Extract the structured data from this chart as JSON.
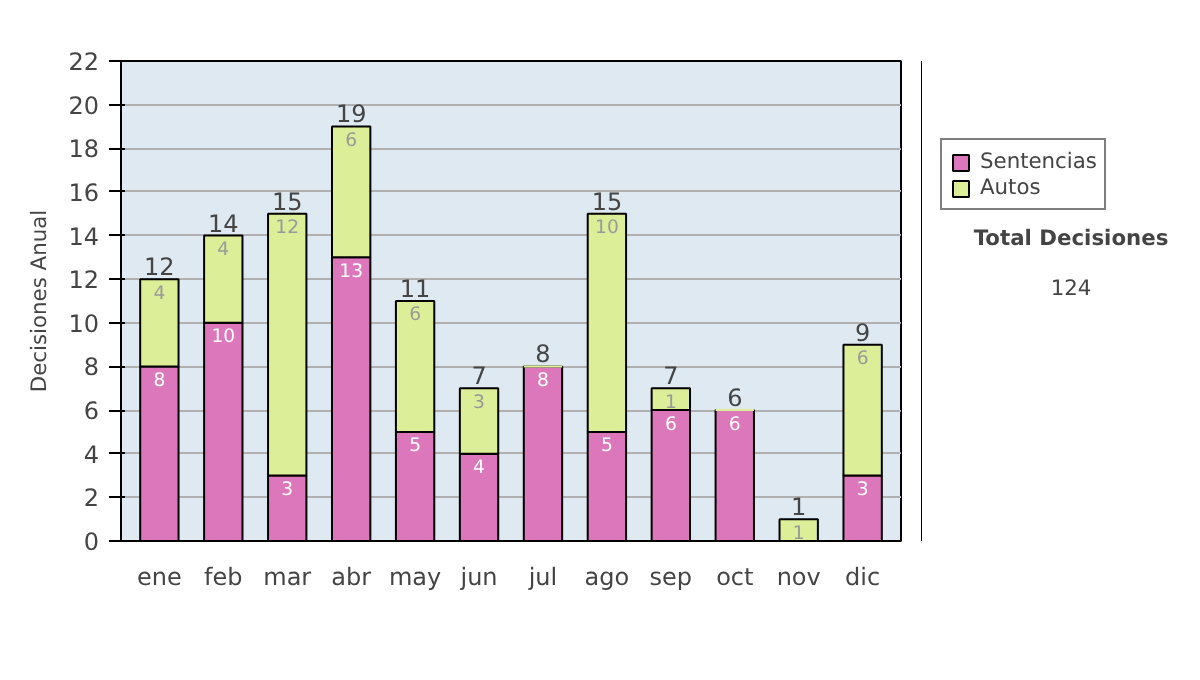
{
  "chart_data": {
    "type": "bar",
    "stacked": true,
    "categories": [
      "ene",
      "feb",
      "mar",
      "abr",
      "may",
      "jun",
      "jul",
      "ago",
      "sep",
      "oct",
      "nov",
      "dic"
    ],
    "series": [
      {
        "name": "Sentencias",
        "color": "#dd77bb",
        "values": [
          8,
          10,
          3,
          13,
          5,
          4,
          8,
          5,
          6,
          6,
          0,
          3
        ],
        "value_labels": [
          "8",
          "10",
          "3",
          "13",
          "5",
          "4",
          "8",
          "5",
          "6",
          "6",
          null,
          "3"
        ]
      },
      {
        "name": "Autos",
        "color": "#ddee99",
        "values": [
          4,
          4,
          12,
          6,
          6,
          3,
          0,
          10,
          1,
          0,
          1,
          6
        ],
        "value_labels": [
          "4",
          "4",
          "12",
          "6",
          "6",
          "3",
          null,
          "10",
          "1",
          null,
          "1",
          "6"
        ]
      }
    ],
    "totals": [
      "12",
      "14",
      "15",
      "19",
      "11",
      "7",
      "8",
      "15",
      "7",
      "6",
      "1",
      "9"
    ],
    "ylabel": "Decisiones Anual",
    "ylim": [
      0,
      22
    ],
    "yticks": [
      0,
      2,
      4,
      6,
      8,
      10,
      12,
      14,
      16,
      18,
      20,
      22
    ],
    "grid": "y",
    "legend": "right",
    "annotations": [
      "Total Decisiones",
      "124"
    ]
  }
}
